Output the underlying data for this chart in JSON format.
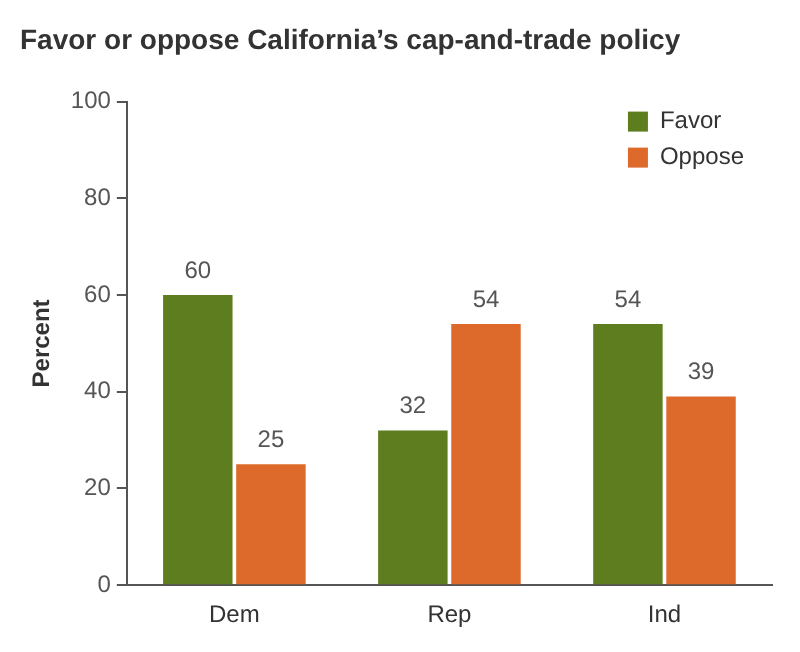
{
  "chart_data": {
    "type": "bar",
    "title": "Favor or oppose California’s cap-and-trade policy",
    "ylabel": "Percent",
    "categories": [
      "Dem",
      "Rep",
      "Ind"
    ],
    "series": [
      {
        "name": "Favor",
        "color": "#5e7d1f",
        "values": [
          60,
          32,
          54
        ]
      },
      {
        "name": "Oppose",
        "color": "#dd6a2a",
        "values": [
          25,
          54,
          39
        ]
      }
    ],
    "ylim": [
      0,
      100
    ],
    "yticks": [
      0,
      20,
      40,
      60,
      80,
      100
    ],
    "grid": false,
    "legend": "top right",
    "data_labels": true
  }
}
